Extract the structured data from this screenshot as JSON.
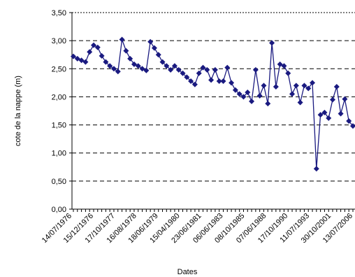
{
  "chart_data": {
    "type": "line",
    "title": "",
    "ylabel": "cote de la nappe (m)",
    "xlabel": "Dates",
    "ylim": [
      0,
      3.5
    ],
    "y_ticks": [
      "0,00",
      "0,50",
      "1,00",
      "1,50",
      "2,00",
      "2,50",
      "3,00",
      "3,50"
    ],
    "x_tick_labels": [
      "14/07/1976",
      "15/12/1976",
      "17/10/1977",
      "16/08/1978",
      "18/06/1979",
      "15/04/1980",
      "23/06/1981",
      "06/06/1983",
      "08/10/1985",
      "07/06/1988",
      "17/10/1990",
      "11/07/1993",
      "30/10/2001",
      "13/07/2006"
    ],
    "grid": "horizontal dashed",
    "legend": "none",
    "series": [
      {
        "color": "#1a1a80",
        "marker": "diamond",
        "values": [
          2.72,
          2.68,
          2.65,
          2.62,
          2.8,
          2.92,
          2.88,
          2.73,
          2.62,
          2.55,
          2.5,
          2.45,
          3.02,
          2.82,
          2.68,
          2.58,
          2.55,
          2.5,
          2.47,
          2.98,
          2.87,
          2.75,
          2.62,
          2.55,
          2.48,
          2.55,
          2.48,
          2.42,
          2.35,
          2.28,
          2.22,
          2.42,
          2.52,
          2.48,
          2.3,
          2.48,
          2.28,
          2.28,
          2.52,
          2.25,
          2.12,
          2.05,
          2.0,
          2.08,
          1.92,
          2.48,
          2.02,
          2.2,
          1.88,
          2.96,
          2.18,
          2.58,
          2.55,
          2.42,
          2.05,
          2.2,
          1.9,
          2.2,
          2.15,
          2.25,
          0.72,
          1.68,
          1.72,
          1.62,
          1.95,
          2.18,
          1.7,
          1.96,
          1.57,
          1.48
        ]
      }
    ]
  }
}
